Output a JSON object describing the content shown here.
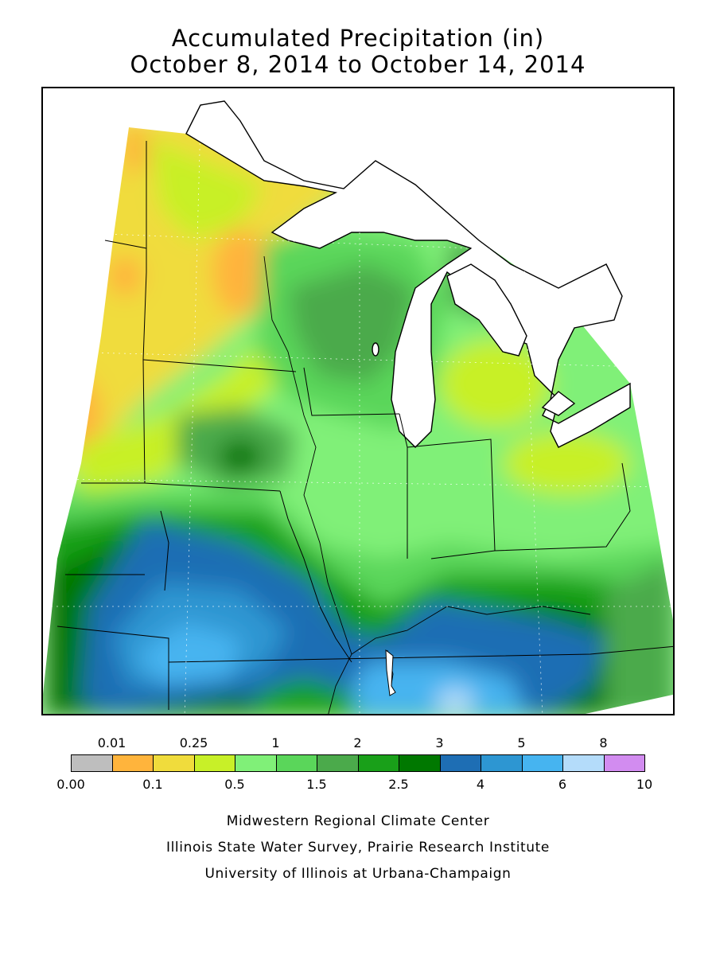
{
  "title": {
    "line1": "Accumulated Precipitation (in)",
    "line2": "October 8, 2014 to October 14, 2014"
  },
  "legend": {
    "colors": [
      "#bebebe",
      "#ffb43c",
      "#f0dc3c",
      "#c8f028",
      "#80f078",
      "#5ad65a",
      "#4baa4b",
      "#19a019",
      "#007800",
      "#1e6eb4",
      "#2d96d2",
      "#46b4f0",
      "#b4dcfa",
      "#d28cf0"
    ],
    "top_labels": [
      "0.01",
      "0.25",
      "1",
      "2",
      "3",
      "5",
      "8"
    ],
    "bottom_labels": [
      "0.00",
      "0.1",
      "0.5",
      "1.5",
      "2.5",
      "4",
      "6",
      "10"
    ]
  },
  "credits": {
    "line1": "Midwestern Regional Climate Center",
    "line2": "Illinois State Water Survey, Prairie Research Institute",
    "line3": "University of Illinois at Urbana-Champaign"
  }
}
